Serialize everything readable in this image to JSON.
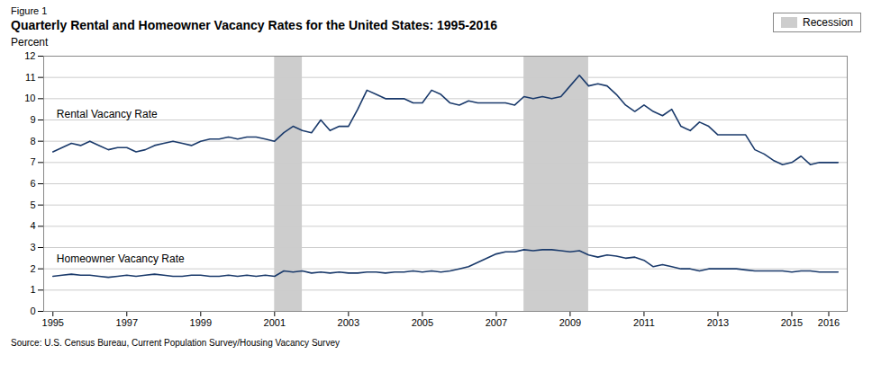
{
  "chart_data": {
    "type": "line",
    "title": "Quarterly Rental and Homeowner Vacancy Rates for the United States: 1995-2016",
    "subtitle": "Figure 1",
    "ylabel": "Percent",
    "caption": "Source: U.S. Census Bureau, Current Population Survey/Housing Vacancy Survey",
    "xlim": [
      1994.75,
      2016.5
    ],
    "xticks": [
      1995,
      1997,
      1999,
      2001,
      2003,
      2005,
      2007,
      2009,
      2011,
      2013,
      2015,
      2016
    ],
    "ylim": [
      0,
      12
    ],
    "yticks": [
      0,
      1,
      2,
      3,
      4,
      5,
      6,
      7,
      8,
      9,
      10,
      11,
      12
    ],
    "grid": "y",
    "legend": "upper right",
    "x": [
      1995.0,
      1995.25,
      1995.5,
      1995.75,
      1996.0,
      1996.25,
      1996.5,
      1996.75,
      1997.0,
      1997.25,
      1997.5,
      1997.75,
      1998.0,
      1998.25,
      1998.5,
      1998.75,
      1999.0,
      1999.25,
      1999.5,
      1999.75,
      2000.0,
      2000.25,
      2000.5,
      2000.75,
      2001.0,
      2001.25,
      2001.5,
      2001.75,
      2002.0,
      2002.25,
      2002.5,
      2002.75,
      2003.0,
      2003.25,
      2003.5,
      2003.75,
      2004.0,
      2004.25,
      2004.5,
      2004.75,
      2005.0,
      2005.25,
      2005.5,
      2005.75,
      2006.0,
      2006.25,
      2006.5,
      2006.75,
      2007.0,
      2007.25,
      2007.5,
      2007.75,
      2008.0,
      2008.25,
      2008.5,
      2008.75,
      2009.0,
      2009.25,
      2009.5,
      2009.75,
      2010.0,
      2010.25,
      2010.5,
      2010.75,
      2011.0,
      2011.25,
      2011.5,
      2011.75,
      2012.0,
      2012.25,
      2012.5,
      2012.75,
      2013.0,
      2013.25,
      2013.5,
      2013.75,
      2014.0,
      2014.25,
      2014.5,
      2014.75,
      2015.0,
      2015.25,
      2015.5,
      2015.75,
      2016.0,
      2016.25
    ],
    "series": [
      {
        "color": "#1a3a6b",
        "values": [
          7.5,
          7.7,
          7.9,
          7.8,
          8.0,
          7.8,
          7.6,
          7.7,
          7.7,
          7.5,
          7.6,
          7.8,
          7.9,
          8.0,
          7.9,
          7.8,
          8.0,
          8.1,
          8.1,
          8.2,
          8.1,
          8.2,
          8.2,
          8.1,
          8.0,
          8.4,
          8.7,
          8.5,
          8.4,
          9.0,
          8.5,
          8.7,
          8.7,
          9.5,
          10.4,
          10.2,
          10.0,
          10.0,
          10.0,
          9.8,
          9.8,
          10.4,
          10.2,
          9.8,
          9.7,
          9.9,
          9.8,
          9.8,
          9.8,
          9.8,
          9.7,
          10.1,
          10.0,
          10.1,
          10.0,
          10.1,
          10.6,
          11.1,
          10.6,
          10.7,
          10.6,
          10.2,
          9.7,
          9.4,
          9.7,
          9.4,
          9.2,
          9.5,
          8.7,
          8.5,
          8.9,
          8.7,
          8.3,
          8.3,
          8.3,
          8.3,
          7.6,
          7.4,
          7.1,
          6.9,
          7.0,
          7.3,
          6.9,
          7.0,
          7.0,
          7.0
        ]
      },
      {
        "color": "#1a3a6b",
        "values": [
          1.65,
          1.7,
          1.75,
          1.7,
          1.7,
          1.65,
          1.6,
          1.65,
          1.7,
          1.65,
          1.7,
          1.75,
          1.7,
          1.65,
          1.65,
          1.7,
          1.7,
          1.65,
          1.65,
          1.7,
          1.65,
          1.7,
          1.65,
          1.7,
          1.65,
          1.9,
          1.85,
          1.9,
          1.8,
          1.85,
          1.8,
          1.85,
          1.8,
          1.8,
          1.85,
          1.85,
          1.8,
          1.85,
          1.85,
          1.9,
          1.85,
          1.9,
          1.85,
          1.9,
          2.0,
          2.1,
          2.3,
          2.5,
          2.7,
          2.8,
          2.8,
          2.9,
          2.85,
          2.9,
          2.9,
          2.85,
          2.8,
          2.85,
          2.65,
          2.55,
          2.65,
          2.6,
          2.5,
          2.55,
          2.4,
          2.1,
          2.2,
          2.1,
          2.0,
          2.0,
          1.9,
          2.0,
          2.0,
          2.0,
          2.0,
          1.95,
          1.9,
          1.9,
          1.9,
          1.9,
          1.85,
          1.9,
          1.9,
          1.85,
          1.85,
          1.85
        ]
      }
    ],
    "bands": {
      "name": "Recession",
      "color": "#b8b8b8",
      "ranges": [
        [
          2001.0,
          2001.75
        ],
        [
          2007.75,
          2009.5
        ]
      ]
    },
    "annotations": [
      {
        "text": "Rental Vacancy Rate",
        "x": 1995.1,
        "y": 9.1
      },
      {
        "text": "Homeowner Vacancy Rate",
        "x": 1995.1,
        "y": 2.3
      }
    ]
  }
}
